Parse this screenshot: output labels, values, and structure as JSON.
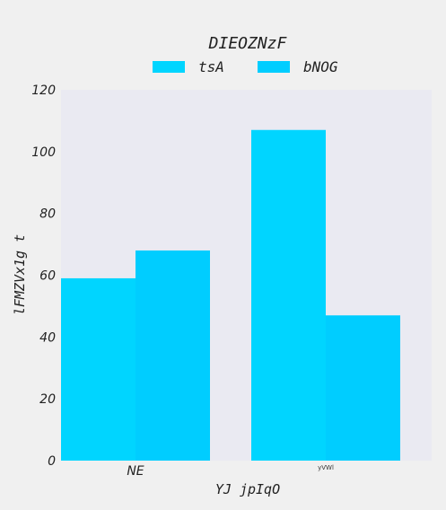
{
  "chart_data": {
    "type": "bar",
    "title": "DIEOZNzF",
    "xlabel": "YJ jpIqO",
    "ylabel": "lFMZVx1g t",
    "categories": [
      "NE",
      "yVWl"
    ],
    "series": [
      {
        "name": "tsA",
        "values": [
          59,
          107
        ],
        "color": "#00d5ff"
      },
      {
        "name": "bNOG",
        "values": [
          68,
          47
        ],
        "color": "#00cdff"
      }
    ],
    "ylim": [
      0,
      120
    ],
    "yticks": [
      0,
      20,
      40,
      60,
      80,
      100,
      120
    ],
    "grid": false,
    "legend_position": "top-center",
    "plot_background": "#eaeaf2"
  }
}
